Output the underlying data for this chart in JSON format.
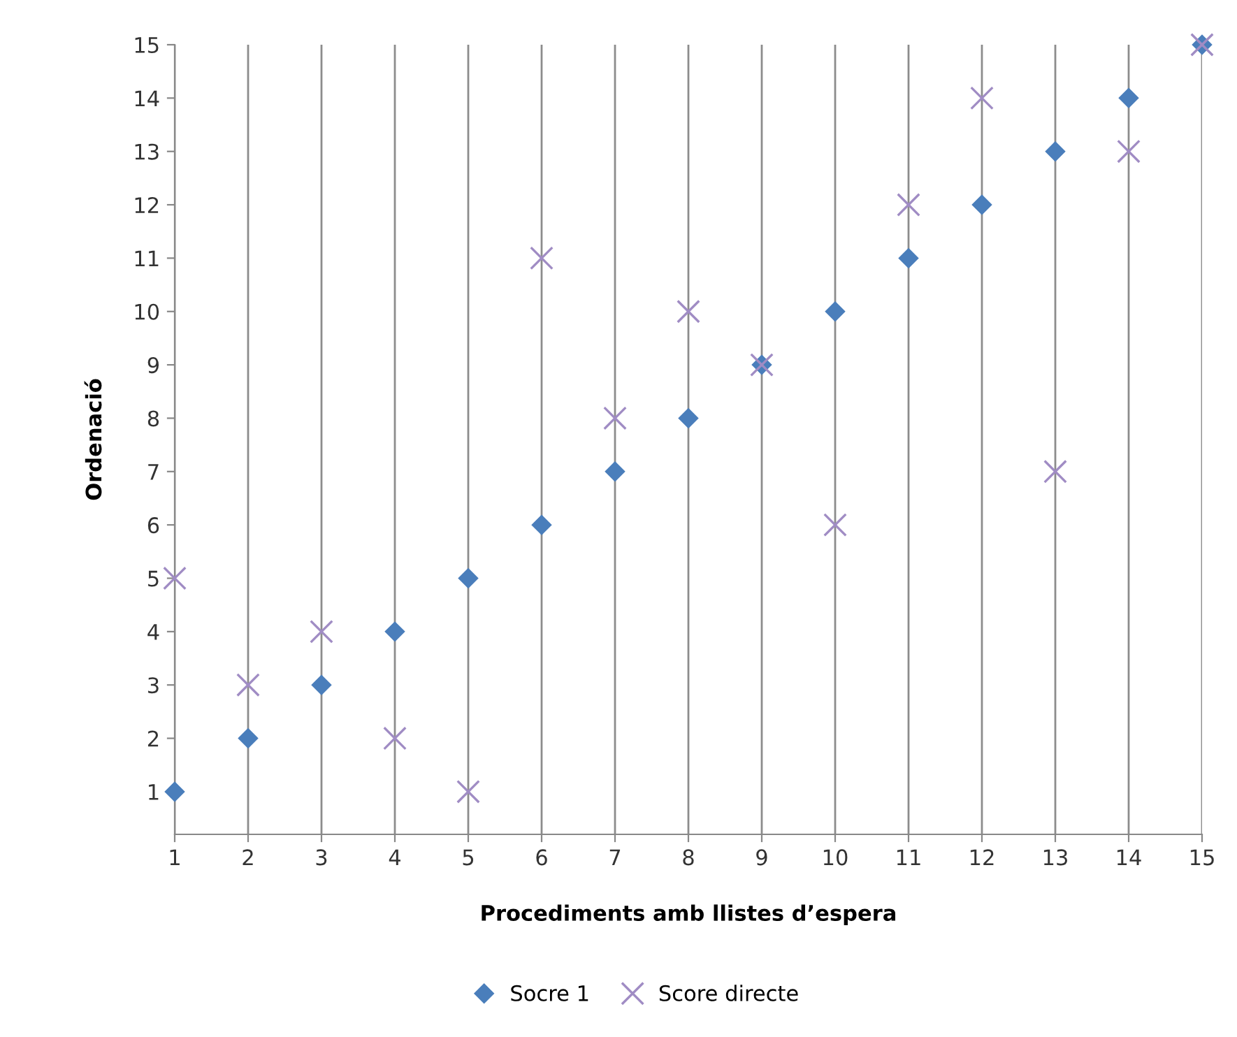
{
  "chart_data": {
    "type": "scatter",
    "xlabel": "Procediments amb llistes d’espera",
    "ylabel": "Ordenació",
    "x": [
      1,
      2,
      3,
      4,
      5,
      6,
      7,
      8,
      9,
      10,
      11,
      12,
      13,
      14,
      15
    ],
    "series": [
      {
        "name": "Socre 1",
        "color": "#4a7ebb",
        "marker": "diamond",
        "values": [
          1,
          2,
          3,
          4,
          5,
          6,
          7,
          8,
          9,
          10,
          11,
          12,
          13,
          14,
          15
        ]
      },
      {
        "name": "Score directe",
        "color": "#a08cc4",
        "marker": "cross",
        "values": [
          5,
          3,
          4,
          2,
          1,
          11,
          8,
          10,
          9,
          6,
          12,
          14,
          7,
          13,
          15
        ]
      }
    ],
    "xlim": [
      1,
      15
    ],
    "xticks": [
      1,
      2,
      3,
      4,
      5,
      6,
      7,
      8,
      9,
      10,
      11,
      12,
      13,
      14,
      15
    ],
    "ylim": [
      0.2,
      15
    ],
    "yticks": [
      1,
      2,
      3,
      4,
      5,
      6,
      7,
      8,
      9,
      10,
      11,
      12,
      13,
      14,
      15
    ],
    "grid": "x",
    "legend": "bottom"
  }
}
